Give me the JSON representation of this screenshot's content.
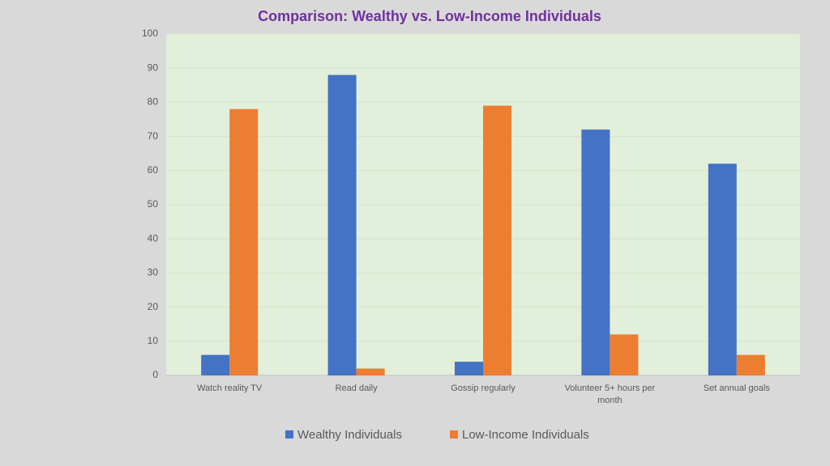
{
  "chart_data": {
    "type": "bar",
    "title": "Comparison: Wealthy vs. Low-Income Individuals",
    "categories": [
      "Watch reality TV",
      "Read daily",
      "Gossip regularly",
      "Volunteer 5+ hours per month",
      "Set annual goals"
    ],
    "series": [
      {
        "name": "Wealthy Individuals",
        "color": "#4472c4",
        "values": [
          6,
          88,
          4,
          72,
          62
        ]
      },
      {
        "name": "Low-Income Individuals",
        "color": "#ed7d31",
        "values": [
          78,
          2,
          79,
          12,
          6
        ]
      }
    ],
    "ylim": [
      0,
      100
    ],
    "yticks": [
      0,
      10,
      20,
      30,
      40,
      50,
      60,
      70,
      80,
      90,
      100
    ],
    "grid": true,
    "legend": "bottom"
  }
}
